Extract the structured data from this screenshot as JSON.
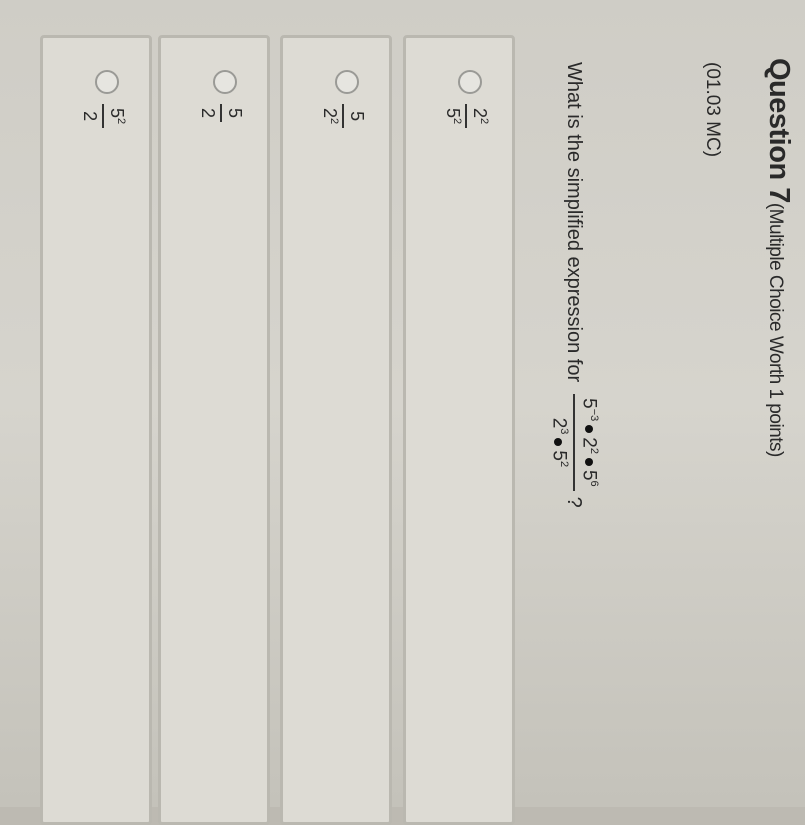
{
  "question": {
    "title": "Question 7",
    "type_label": "(Multiple Choice Worth 1 points)",
    "code": "(01.03 MC)",
    "prompt": "What is the simplified expression for",
    "expression": {
      "numerator": [
        {
          "base": "5",
          "exp": "−3"
        },
        {
          "base": "2",
          "exp": "2"
        },
        {
          "base": "5",
          "exp": "6"
        }
      ],
      "denominator": [
        {
          "base": "2",
          "exp": "3"
        },
        {
          "base": "5",
          "exp": "2"
        }
      ]
    },
    "question_mark": "?"
  },
  "choices": [
    {
      "num_base": "2",
      "num_exp": "2",
      "den_base": "5",
      "den_exp": "2",
      "selected": false
    },
    {
      "num_base": "5",
      "num_exp": "",
      "den_base": "2",
      "den_exp": "2",
      "selected": false
    },
    {
      "num_base": "5",
      "num_exp": "",
      "den_base": "2",
      "den_exp": "",
      "selected": false
    },
    {
      "num_base": "5",
      "num_exp": "2",
      "den_base": "2",
      "den_exp": "",
      "selected": false
    }
  ]
}
